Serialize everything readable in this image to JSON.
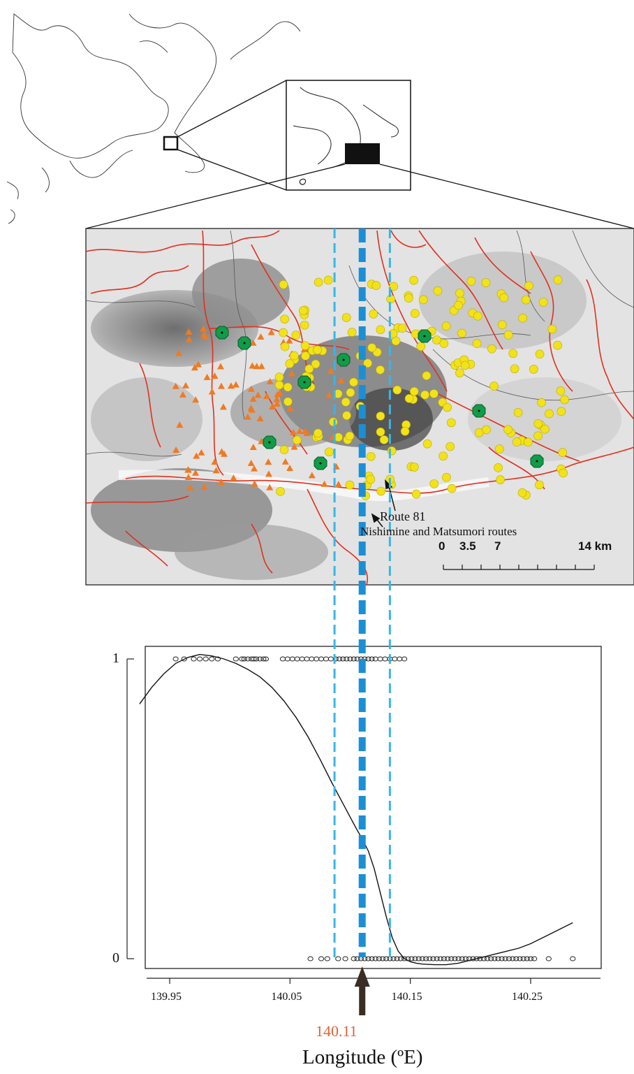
{
  "map": {
    "route_81_label": "Route 81",
    "routes_label": "Nishimine and Matsumori routes",
    "scale_bar": {
      "labels": [
        "0",
        "3.5",
        "7",
        "14 km"
      ]
    },
    "colors": {
      "roads": "#e0301e",
      "yellow_points": "#f2e21a",
      "orange_points": "#f07a22",
      "green_points": "#109c48",
      "boundary_lines": "#e0633a",
      "center_line": "#1b8fd6",
      "ci_lines": "#38b6e6"
    }
  },
  "chart_data": {
    "type": "scatter",
    "title": "",
    "xlabel": "Longitude (ºE)",
    "ylabel": "",
    "xlim": [
      139.92,
      140.29
    ],
    "ylim": [
      0,
      1
    ],
    "x_ticks": [
      "139.95",
      "140.05",
      "140.15",
      "140.25"
    ],
    "y_ticks": [
      "0",
      "1"
    ],
    "cline_center": 140.11,
    "cline_center_label": "140.11",
    "ci_bounds": [
      140.087,
      140.133
    ],
    "series": [
      {
        "y": 1,
        "x": [
          139.955,
          139.962,
          139.97,
          139.975,
          139.98,
          139.985,
          139.99,
          140.005,
          140.01,
          140.012,
          140.015,
          140.018,
          140.02,
          140.022,
          140.025,
          140.028,
          140.03,
          140.044,
          140.048,
          140.052,
          140.056,
          140.06,
          140.064,
          140.068,
          140.072,
          140.076,
          140.08,
          140.084,
          140.088,
          140.091,
          140.094,
          140.097,
          140.1,
          140.103,
          140.106,
          140.109,
          140.112,
          140.115,
          140.118,
          140.121,
          140.125,
          140.129,
          140.133,
          140.137,
          140.141,
          140.145
        ]
      },
      {
        "y": 0,
        "x": [
          140.067,
          140.076,
          140.081,
          140.09,
          140.096,
          140.103,
          140.106,
          140.109,
          140.112,
          140.115,
          140.118,
          140.121,
          140.124,
          140.127,
          140.13,
          140.133,
          140.136,
          140.139,
          140.142,
          140.145,
          140.148,
          140.151,
          140.154,
          140.157,
          140.16,
          140.163,
          140.166,
          140.169,
          140.172,
          140.175,
          140.178,
          140.181,
          140.184,
          140.187,
          140.19,
          140.193,
          140.196,
          140.199,
          140.202,
          140.205,
          140.208,
          140.211,
          140.214,
          140.217,
          140.22,
          140.223,
          140.226,
          140.229,
          140.232,
          140.235,
          140.238,
          140.241,
          140.244,
          140.247,
          140.25,
          140.253,
          140.265,
          140.285
        ]
      }
    ],
    "fit_curve": {
      "x": [
        139.925,
        139.935,
        139.945,
        139.955,
        139.965,
        139.975,
        139.985,
        139.995,
        140.005,
        140.015,
        140.025,
        140.035,
        140.045,
        140.055,
        140.065,
        140.075,
        140.085,
        140.095,
        140.105,
        140.11,
        140.115,
        140.12,
        140.125,
        140.13,
        140.135,
        140.14,
        140.145,
        140.15,
        140.155,
        140.16,
        140.17,
        140.18,
        140.19,
        140.2,
        140.21,
        140.22,
        140.23,
        140.24,
        140.25,
        140.26,
        140.27,
        140.285
      ],
      "y": [
        0.85,
        0.905,
        0.95,
        0.985,
        1.005,
        1.015,
        1.01,
        1.0,
        0.985,
        0.965,
        0.94,
        0.905,
        0.86,
        0.805,
        0.74,
        0.665,
        0.585,
        0.51,
        0.435,
        0.4,
        0.36,
        0.3,
        0.22,
        0.14,
        0.07,
        0.025,
        0.0,
        -0.01,
        -0.015,
        -0.018,
        -0.02,
        -0.02,
        -0.015,
        -0.005,
        0.005,
        0.015,
        0.025,
        0.035,
        0.05,
        0.07,
        0.09,
        0.12
      ]
    }
  }
}
